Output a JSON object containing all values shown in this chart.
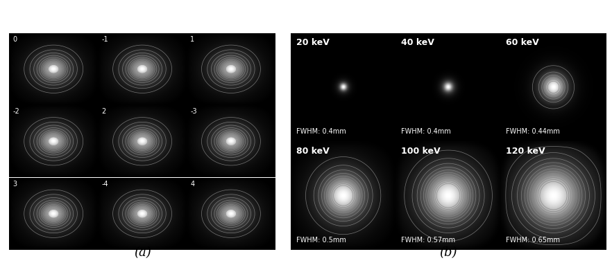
{
  "panel_a_labels": [
    "0",
    "-1",
    "1",
    "-2",
    "2",
    "-3",
    "3",
    "-4",
    "4"
  ],
  "panel_b_energies": [
    "20 keV",
    "40 keV",
    "60 keV",
    "80 keV",
    "100 keV",
    "120 keV"
  ],
  "panel_b_fwhm": [
    "FWHM: 0.4mm",
    "FWHM: 0.4mm",
    "FWHM: 0.44mm",
    "FWHM: 0.5mm",
    "FWHM: 0.57mm",
    "FWHM: 0.65mm"
  ],
  "panel_b_spot_sigma": [
    0.04,
    0.05,
    0.12,
    0.2,
    0.24,
    0.28
  ],
  "panel_b_glow_sigma": [
    0.06,
    0.08,
    0.18,
    0.32,
    0.38,
    0.44
  ],
  "panel_b_outer_sigma": [
    0.1,
    0.12,
    0.28,
    0.52,
    0.6,
    0.68
  ],
  "panel_a_spot_sigma": 0.12,
  "panel_a_glow_sigma": 0.28,
  "panel_a_outer_sigma": 0.52,
  "caption_a": "(a)",
  "caption_b": "(b)",
  "figure_bg": "#ffffff",
  "n_contours_a": 14,
  "n_contours_b": [
    0,
    0,
    6,
    10,
    12,
    12
  ],
  "label_fontsize_a": 7,
  "energy_fontsize_b": 9,
  "fwhm_fontsize_b": 7
}
